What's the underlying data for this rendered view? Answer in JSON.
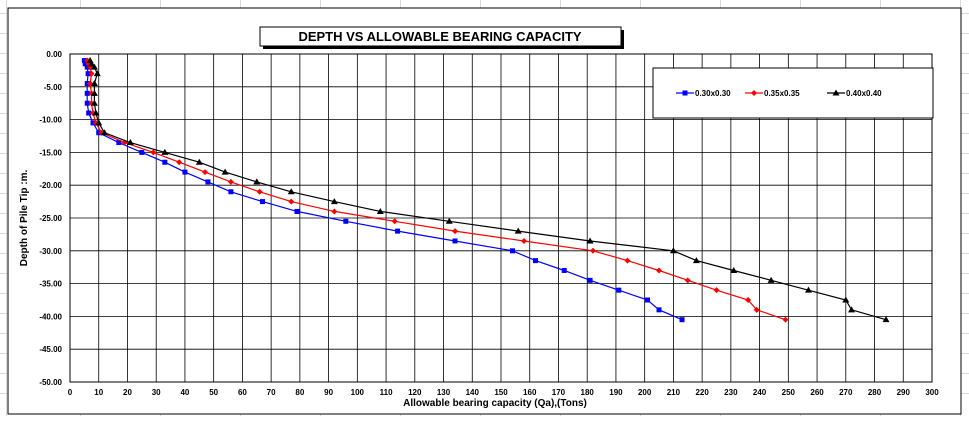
{
  "chart_data": {
    "type": "line",
    "title": "DEPTH  VS  ALLOWABLE BEARING CAPACITY",
    "xlabel": "Allowable  bearing capacity (Qa),(Tons)",
    "ylabel": "Depth of Pile Tip :m.",
    "xlim": [
      0,
      300
    ],
    "ylim": [
      -50,
      0
    ],
    "x_ticks": [
      "0",
      "10",
      "20",
      "30",
      "40",
      "50",
      "60",
      "70",
      "80",
      "90",
      "100",
      "110",
      "120",
      "130",
      "140",
      "150",
      "160",
      "170",
      "180",
      "190",
      "200",
      "210",
      "220",
      "230",
      "240",
      "250",
      "260",
      "270",
      "280",
      "290",
      "300"
    ],
    "y_ticks": [
      "0.00",
      "-5.00",
      "-10.00",
      "-15.00",
      "-20.00",
      "-25.00",
      "-30.00",
      "-35.00",
      "-40.00",
      "-45.00",
      "-50.00"
    ],
    "grid": true,
    "legend_position": "top-right",
    "series": [
      {
        "name": "0.30x0.30",
        "color": "#0000FF",
        "marker": "square",
        "points": [
          [
            5,
            -1
          ],
          [
            5.3,
            -1.5
          ],
          [
            6,
            -2
          ],
          [
            6.3,
            -3
          ],
          [
            6,
            -4.5
          ],
          [
            6,
            -6
          ],
          [
            6,
            -7.5
          ],
          [
            6.5,
            -9
          ],
          [
            8,
            -10.5
          ],
          [
            10,
            -12
          ],
          [
            17,
            -13.5
          ],
          [
            25,
            -15
          ],
          [
            33,
            -16.5
          ],
          [
            40,
            -18
          ],
          [
            48,
            -19.5
          ],
          [
            56,
            -21
          ],
          [
            67,
            -22.5
          ],
          [
            79,
            -24
          ],
          [
            96,
            -25.5
          ],
          [
            114,
            -27
          ],
          [
            134,
            -28.5
          ],
          [
            154,
            -30
          ],
          [
            162,
            -31.5
          ],
          [
            172,
            -33
          ],
          [
            181,
            -34.5
          ],
          [
            191,
            -36
          ],
          [
            201,
            -37.5
          ],
          [
            205,
            -39
          ],
          [
            213,
            -40.5
          ]
        ]
      },
      {
        "name": "0.35x0.35",
        "color": "#FF0000",
        "marker": "diamond",
        "points": [
          [
            6,
            -1
          ],
          [
            6.5,
            -1.5
          ],
          [
            7,
            -2
          ],
          [
            7.5,
            -3
          ],
          [
            7,
            -4.5
          ],
          [
            7.5,
            -6
          ],
          [
            7.5,
            -7.5
          ],
          [
            8,
            -9
          ],
          [
            9,
            -10.5
          ],
          [
            11,
            -12
          ],
          [
            19,
            -13.5
          ],
          [
            29,
            -15
          ],
          [
            38,
            -16.5
          ],
          [
            47,
            -18
          ],
          [
            56,
            -19.5
          ],
          [
            66,
            -21
          ],
          [
            77,
            -22.5
          ],
          [
            92,
            -24
          ],
          [
            113,
            -25.5
          ],
          [
            134,
            -27
          ],
          [
            158,
            -28.5
          ],
          [
            182,
            -30
          ],
          [
            194,
            -31.5
          ],
          [
            205,
            -33
          ],
          [
            215,
            -34.5
          ],
          [
            225,
            -36
          ],
          [
            236,
            -37.5
          ],
          [
            239,
            -39
          ],
          [
            249,
            -40.5
          ]
        ]
      },
      {
        "name": "0.40x0.40",
        "color": "#000000",
        "marker": "triangle",
        "points": [
          [
            7,
            -1
          ],
          [
            7.5,
            -1.5
          ],
          [
            8.5,
            -2
          ],
          [
            9.5,
            -3
          ],
          [
            8.5,
            -4.5
          ],
          [
            8.5,
            -6
          ],
          [
            8.5,
            -7.5
          ],
          [
            9,
            -9
          ],
          [
            10,
            -10.5
          ],
          [
            12,
            -12
          ],
          [
            21,
            -13.5
          ],
          [
            33,
            -15
          ],
          [
            45,
            -16.5
          ],
          [
            54,
            -18
          ],
          [
            65,
            -19.5
          ],
          [
            77,
            -21
          ],
          [
            92,
            -22.5
          ],
          [
            108,
            -24
          ],
          [
            132,
            -25.5
          ],
          [
            156,
            -27
          ],
          [
            181,
            -28.5
          ],
          [
            210,
            -30
          ],
          [
            218,
            -31.5
          ],
          [
            231,
            -33
          ],
          [
            244,
            -34.5
          ],
          [
            257,
            -36
          ],
          [
            270,
            -37.5
          ],
          [
            272,
            -39
          ],
          [
            284,
            -40.5
          ]
        ]
      }
    ]
  }
}
